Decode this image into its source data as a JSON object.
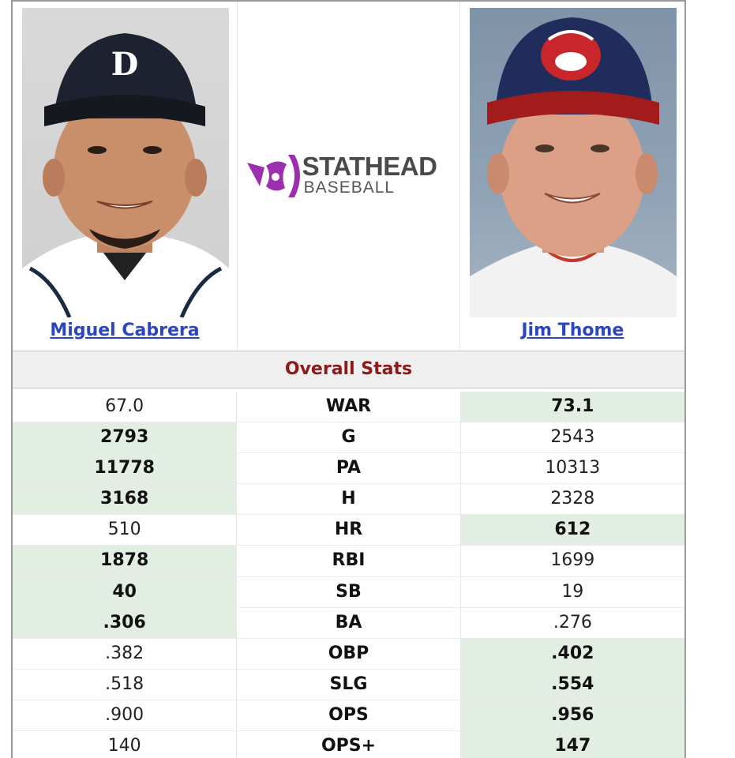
{
  "players": {
    "left": {
      "name": "Miguel Cabrera",
      "cap_letter": "D"
    },
    "right": {
      "name": "Jim Thome"
    }
  },
  "logo": {
    "line1": "STATHEAD",
    "line2": "BASEBALL",
    "accent": "#9b2fae"
  },
  "section_title": "Overall Stats",
  "stats": [
    {
      "label": "WAR",
      "left": "67.0",
      "right": "73.1",
      "winner": "right"
    },
    {
      "label": "G",
      "left": "2793",
      "right": "2543",
      "winner": "left"
    },
    {
      "label": "PA",
      "left": "11778",
      "right": "10313",
      "winner": "left"
    },
    {
      "label": "H",
      "left": "3168",
      "right": "2328",
      "winner": "left"
    },
    {
      "label": "HR",
      "left": "510",
      "right": "612",
      "winner": "right"
    },
    {
      "label": "RBI",
      "left": "1878",
      "right": "1699",
      "winner": "left"
    },
    {
      "label": "SB",
      "left": "40",
      "right": "19",
      "winner": "left"
    },
    {
      "label": "BA",
      "left": ".306",
      "right": ".276",
      "winner": "left"
    },
    {
      "label": "OBP",
      "left": ".382",
      "right": ".402",
      "winner": "right"
    },
    {
      "label": "SLG",
      "left": ".518",
      "right": ".554",
      "winner": "right"
    },
    {
      "label": "OPS",
      "left": ".900",
      "right": ".956",
      "winner": "right"
    },
    {
      "label": "OPS+",
      "left": "140",
      "right": "147",
      "winner": "right"
    }
  ],
  "colors": {
    "winner_bg": "#e2eee2",
    "link": "#2c46c2",
    "section_title": "#8b1a1a"
  }
}
